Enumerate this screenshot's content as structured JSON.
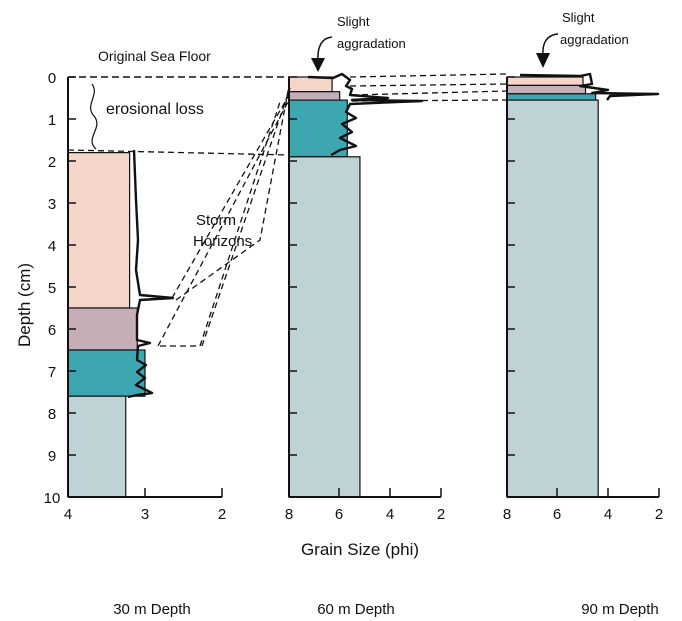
{
  "title_text": "Original Sea Floor",
  "erosion_label": "erosional loss",
  "storm_label": [
    "Storm",
    "Horizons"
  ],
  "aggradation_label": [
    "Slight",
    "aggradation"
  ],
  "y_axis": {
    "label": "Depth (cm)",
    "ticks": [
      0,
      1,
      2,
      3,
      4,
      5,
      6,
      7,
      8,
      9,
      10
    ]
  },
  "x_axis_label": "Grain Size (phi)",
  "colors": {
    "pink": "#f5d6ca",
    "mauve": "#c5aeb8",
    "teal": "#3ca7b0",
    "lightblue": "#bfd2d6",
    "line": "#111111"
  },
  "panels": [
    {
      "title": "30 m Depth",
      "x_range": [
        4,
        2
      ],
      "x_ticks": [
        "4",
        "3",
        "2"
      ],
      "layers": [
        {
          "color": "pink",
          "top": 1.8,
          "bottom": 5.5,
          "phi": 3.2
        },
        {
          "color": "mauve",
          "top": 5.5,
          "bottom": 6.5,
          "phi": 3.1
        },
        {
          "color": "teal",
          "top": 6.5,
          "bottom": 7.6,
          "phi": 3.0
        },
        {
          "color": "lightblue",
          "top": 7.6,
          "bottom": 10,
          "phi": 3.25
        }
      ]
    },
    {
      "title": "60 m Depth",
      "x_range": [
        8,
        2
      ],
      "x_ticks": [
        "8",
        "6",
        "4",
        "2"
      ],
      "layers": [
        {
          "color": "pink",
          "top": 0,
          "bottom": 0.35,
          "phi": 6.3
        },
        {
          "color": "mauve",
          "top": 0.35,
          "bottom": 0.55,
          "phi": 6.0
        },
        {
          "color": "teal",
          "top": 0.55,
          "bottom": 1.9,
          "phi": 5.7
        },
        {
          "color": "lightblue",
          "top": 1.9,
          "bottom": 10,
          "phi": 5.2
        }
      ]
    },
    {
      "title": "90 m Depth",
      "x_range": [
        8,
        2
      ],
      "x_ticks": [
        "8",
        "6",
        "4",
        "2"
      ],
      "layers": [
        {
          "color": "pink",
          "top": 0,
          "bottom": 0.2,
          "phi": 5.0
        },
        {
          "color": "mauve",
          "top": 0.2,
          "bottom": 0.4,
          "phi": 4.9
        },
        {
          "color": "teal",
          "top": 0.4,
          "bottom": 0.55,
          "phi": 4.5
        },
        {
          "color": "lightblue",
          "top": 0.55,
          "bottom": 10,
          "phi": 4.4
        }
      ]
    }
  ]
}
